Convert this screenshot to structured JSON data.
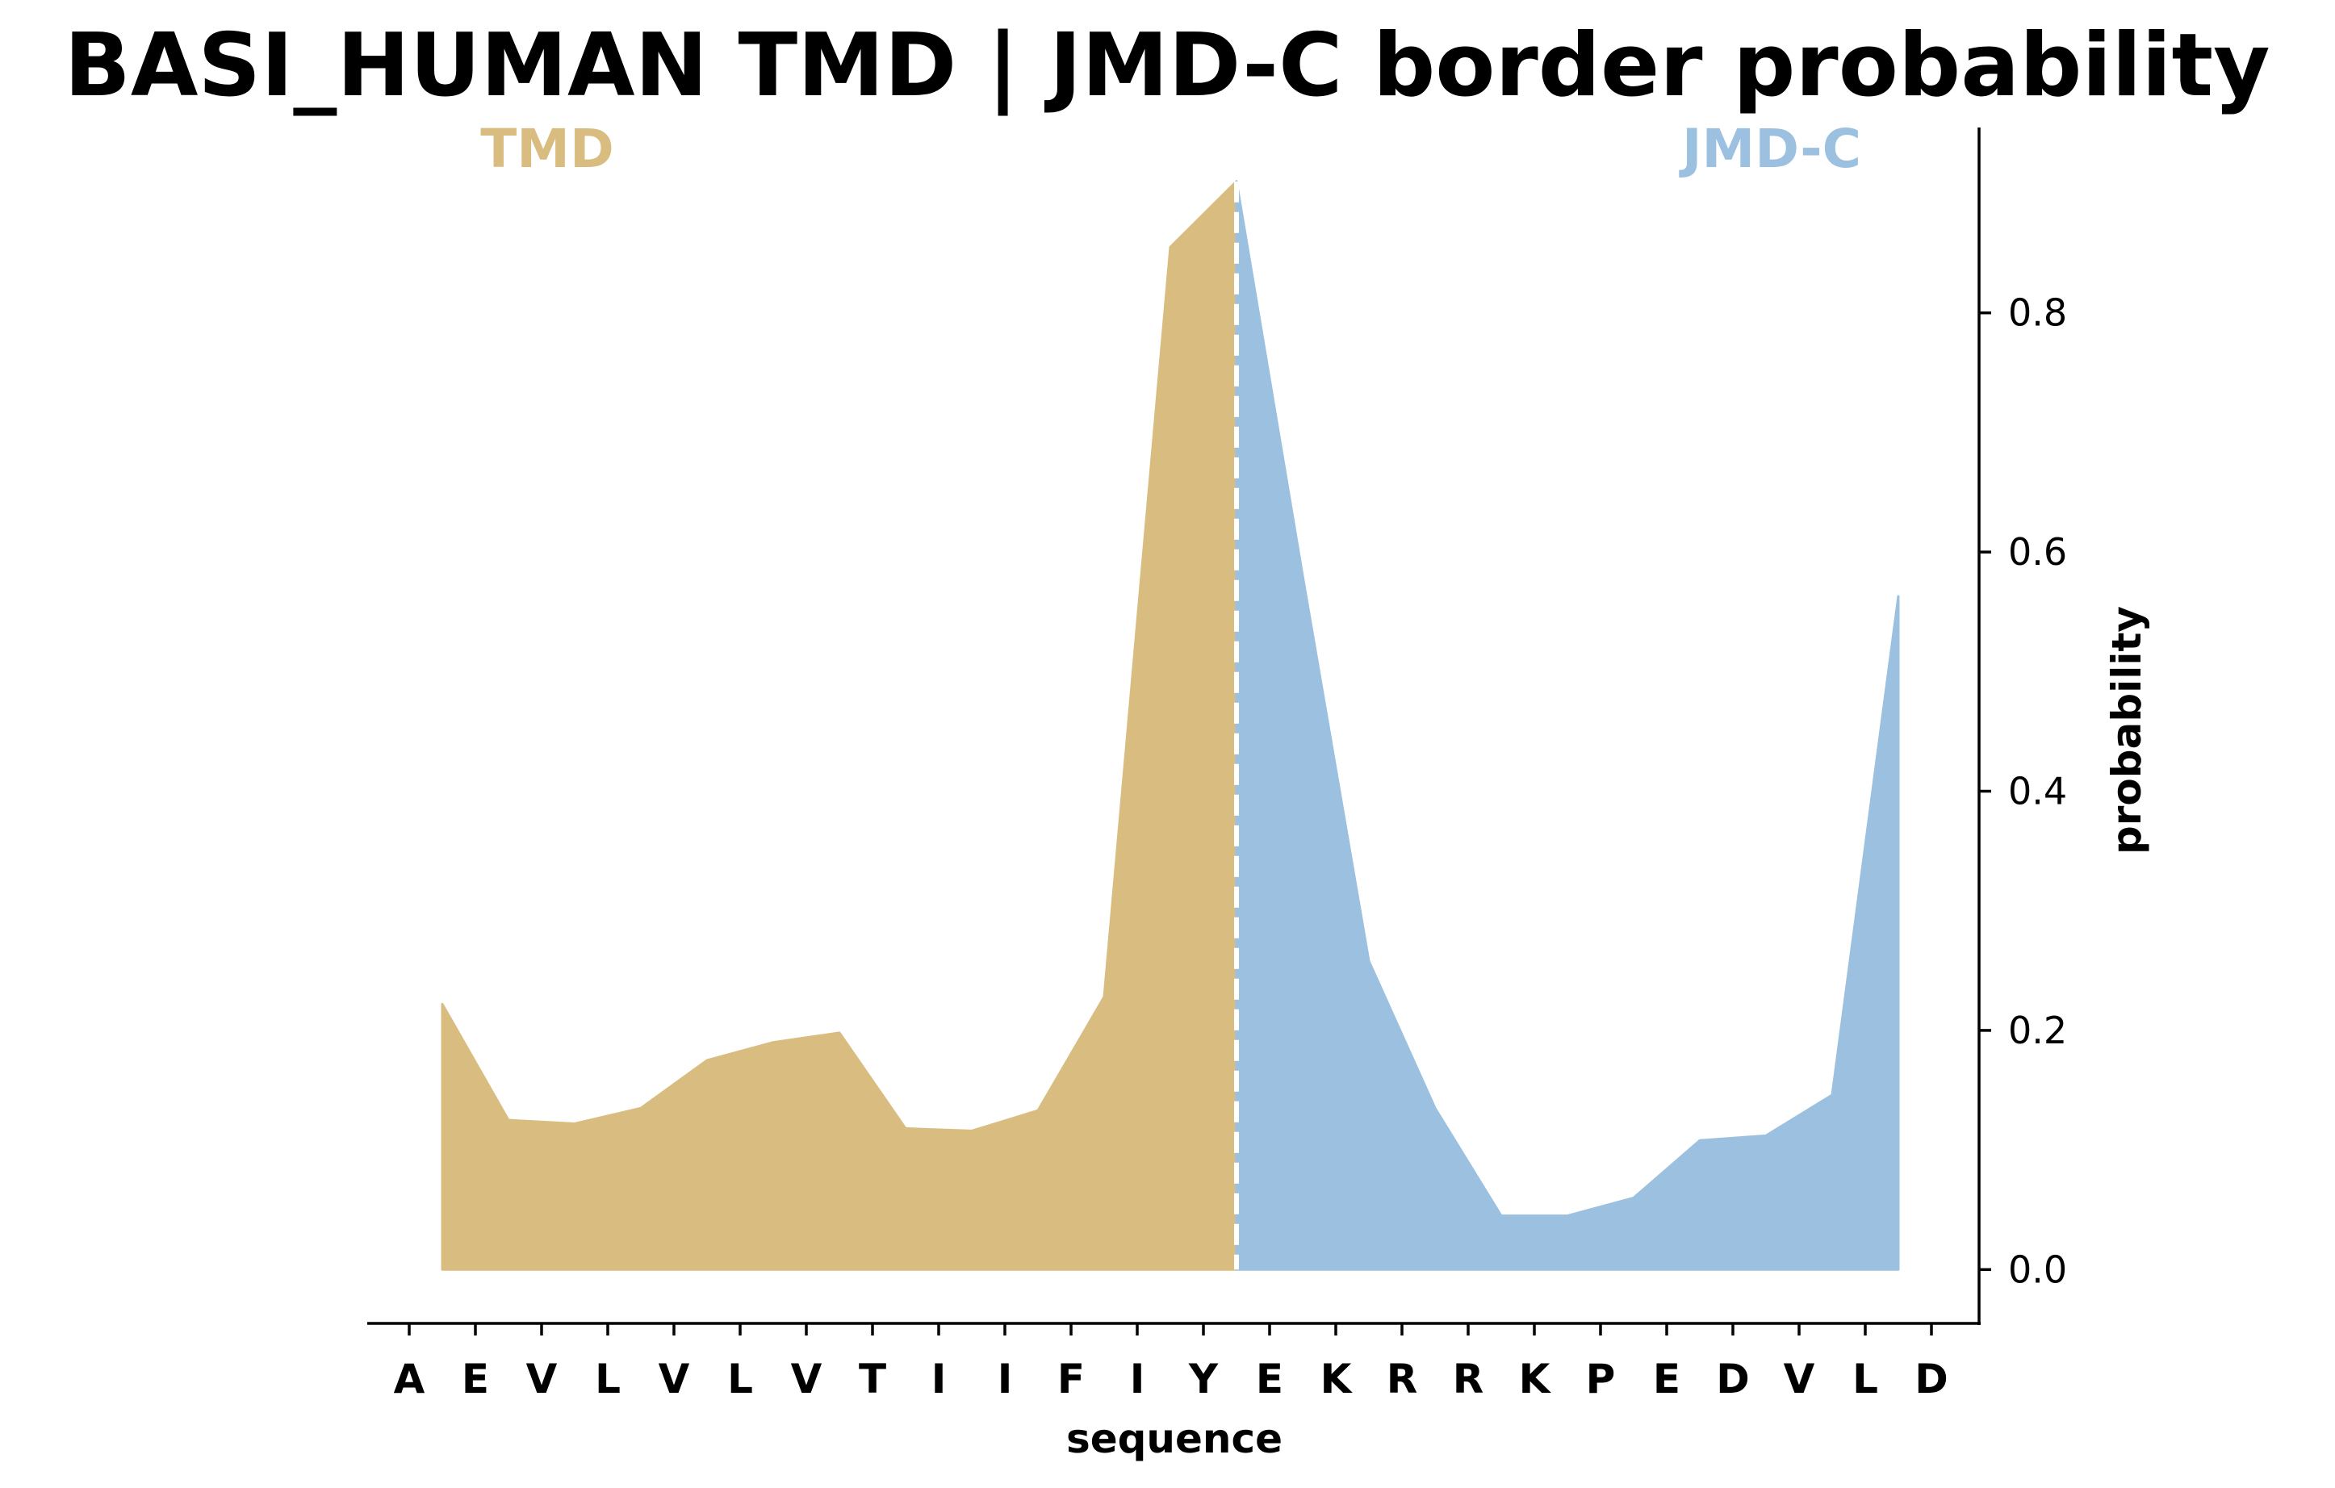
{
  "chart_data": {
    "type": "area",
    "title": "BASI_HUMAN TMD | JMD-C border probability",
    "xlabel": "sequence",
    "ylabel": "probability",
    "categories": [
      "A",
      "E",
      "V",
      "L",
      "V",
      "L",
      "V",
      "T",
      "I",
      "I",
      "F",
      "I",
      "Y",
      "E",
      "K",
      "R",
      "R",
      "K",
      "P",
      "E",
      "D",
      "V",
      "L",
      "D"
    ],
    "ylim": [
      -0.045,
      0.955
    ],
    "yticks": [
      0.0,
      0.2,
      0.4,
      0.6,
      0.8
    ],
    "ytick_labels": [
      "0.0",
      "0.2",
      "0.4",
      "0.6",
      "0.8"
    ],
    "border_position": 12.5,
    "series": [
      {
        "name": "TMD",
        "color": "#d9bd80",
        "x": [
          0.5,
          1.5,
          2.5,
          3.5,
          4.5,
          5.5,
          6.5,
          7.5,
          8.5,
          9.5,
          10.5,
          11.5,
          12.5
        ],
        "values": [
          0.222,
          0.125,
          0.122,
          0.135,
          0.175,
          0.19,
          0.198,
          0.118,
          0.116,
          0.133,
          0.228,
          0.855,
          0.91
        ]
      },
      {
        "name": "JMD-C",
        "color": "#9bc0e0",
        "x": [
          12.5,
          13.5,
          14.5,
          15.5,
          16.5,
          17.5,
          18.5,
          19.5,
          20.5,
          21.5,
          22.5
        ],
        "values": [
          0.91,
          0.58,
          0.258,
          0.135,
          0.045,
          0.045,
          0.06,
          0.108,
          0.112,
          0.146,
          0.563
        ]
      }
    ]
  }
}
